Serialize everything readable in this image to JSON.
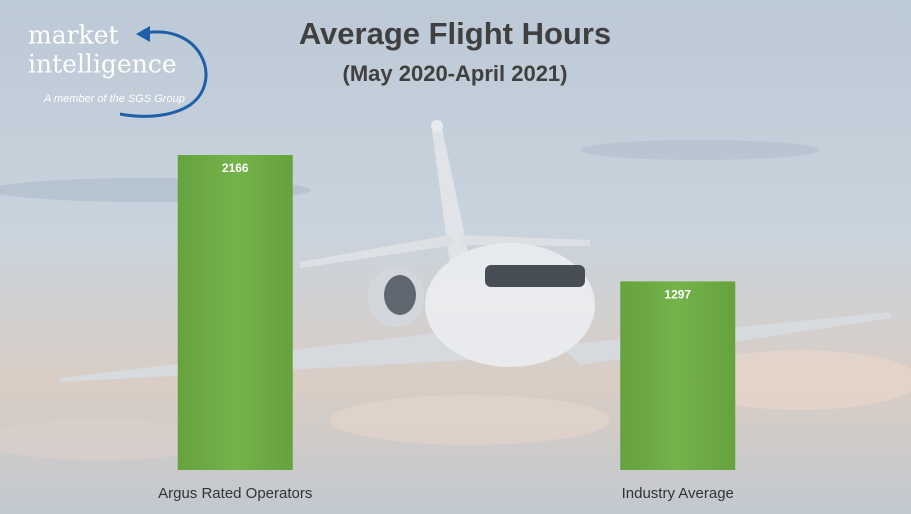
{
  "logo": {
    "line1": "market",
    "line2": "intelligence",
    "tagline": "A member of the SGS Group"
  },
  "chart_data": {
    "type": "bar",
    "title": "Average Flight Hours",
    "subtitle": "(May 2020-April 2021)",
    "categories": [
      "Argus Rated Operators",
      "Industry Average"
    ],
    "values": [
      2166,
      1297
    ],
    "color": "#6fac46",
    "ylim": [
      0,
      2400
    ],
    "value_labels_shown": true
  }
}
